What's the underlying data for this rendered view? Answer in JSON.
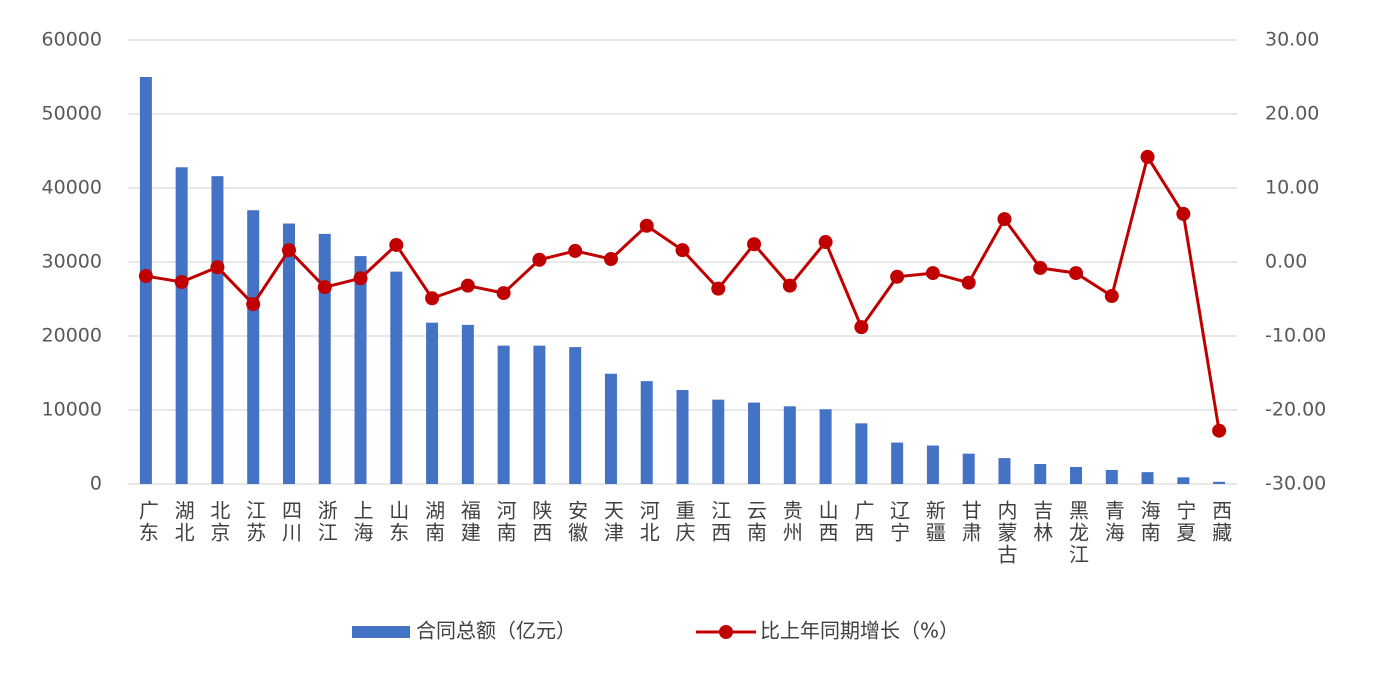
{
  "chart_data": {
    "type": "combo",
    "categories": [
      "广东",
      "湖北",
      "北京",
      "江苏",
      "四川",
      "浙江",
      "上海",
      "山东",
      "湖南",
      "福建",
      "河南",
      "陕西",
      "安徽",
      "天津",
      "河北",
      "重庆",
      "江西",
      "云南",
      "贵州",
      "山西",
      "广西",
      "辽宁",
      "新疆",
      "甘肃",
      "内蒙古",
      "吉林",
      "黑龙江",
      "青海",
      "海南",
      "宁夏",
      "西藏"
    ],
    "series": [
      {
        "name": "合同总额（亿元）",
        "type": "bar",
        "color": "#4472c4",
        "values": [
          55000,
          42800,
          41600,
          37000,
          35200,
          33800,
          30800,
          28700,
          21800,
          21500,
          18700,
          18700,
          18500,
          14900,
          13900,
          12700,
          11400,
          11000,
          10500,
          10100,
          8200,
          5600,
          5200,
          4100,
          3500,
          2700,
          2300,
          1900,
          1600,
          900,
          300
        ]
      },
      {
        "name": "比上年同期增长（%）",
        "type": "line",
        "axis": "y2",
        "color": "#c00000",
        "values": [
          -1.9,
          -2.7,
          -0.7,
          -5.7,
          1.6,
          -3.4,
          -2.2,
          2.3,
          -4.9,
          -3.2,
          -4.2,
          0.3,
          1.5,
          0.4,
          4.9,
          1.6,
          -3.6,
          2.4,
          -3.2,
          2.7,
          -8.8,
          -2.0,
          -1.5,
          -2.8,
          5.8,
          -0.8,
          -1.5,
          -4.6,
          14.2,
          6.5,
          -22.8
        ]
      }
    ],
    "ylim": [
      0,
      60000
    ],
    "yticks": [
      0,
      10000,
      20000,
      30000,
      40000,
      50000,
      60000
    ],
    "y2lim": [
      -30,
      30
    ],
    "y2ticks": [
      {
        "value": -30,
        "label": "-30.00"
      },
      {
        "value": -20,
        "label": "-20.00"
      },
      {
        "value": -10,
        "label": "-10.00"
      },
      {
        "value": 0,
        "label": "0.00"
      },
      {
        "value": 10,
        "label": "10.00"
      },
      {
        "value": 20,
        "label": "20.00"
      },
      {
        "value": 30,
        "label": "30.00"
      }
    ],
    "grid": true,
    "legend": "bottom"
  }
}
